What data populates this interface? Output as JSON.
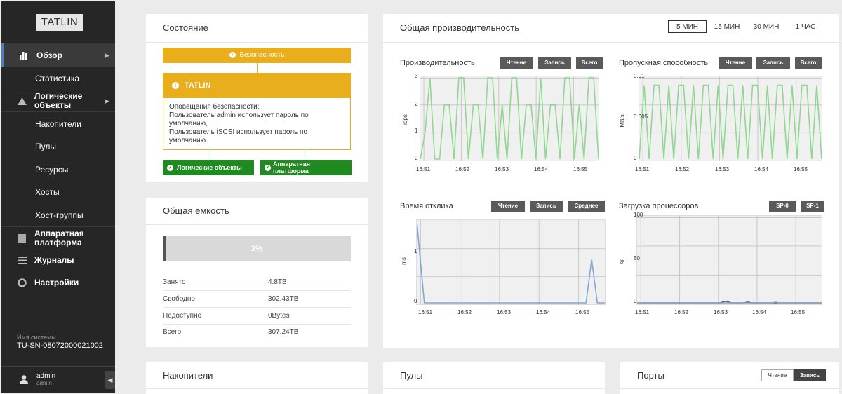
{
  "logo": "TATLIN",
  "sidebar": {
    "overview": "Обзор",
    "statistics": "Статистика",
    "logical": "Логические объекты",
    "logical_items": [
      "Накопители",
      "Пулы",
      "Ресурсы",
      "Хосты",
      "Хост-группы"
    ],
    "hardware": "Аппаратная платформа",
    "journals": "Журналы",
    "settings": "Настройки",
    "system_label": "Имя системы",
    "system_name": "TU-SN-08072000021002",
    "user_name": "admin",
    "user_role": "admin"
  },
  "state": {
    "title": "Состояние",
    "security": "Безопасность",
    "node": "TATLIN",
    "alert_lines": [
      "Оповещения безопасности:",
      "Пользователь admin использует пароль по",
      "умолчанию,",
      "Пользователь iSCSI использует пароль по",
      "умолчанию"
    ],
    "logical_ok": "Логические объекты",
    "hardware_ok_1": "Аппаратная",
    "hardware_ok_2": "платформа",
    "colors": {
      "warning": "#e9ae1b",
      "ok": "#1f8a20"
    }
  },
  "capacity": {
    "title": "Общая ёмкость",
    "percent": "2%",
    "used_fraction": 0.02,
    "rows": [
      {
        "label": "Занято",
        "value": "4.8TB"
      },
      {
        "label": "Свободно",
        "value": "302.43TB"
      },
      {
        "label": "Недоступно",
        "value": "0Bytes"
      },
      {
        "label": "Всего",
        "value": "307.24TB"
      }
    ]
  },
  "performance": {
    "title": "Общая производительность",
    "ranges": [
      "5 МИН",
      "15 МИН",
      "30 МИН",
      "1 ЧАС"
    ],
    "selected_range": "5 МИН"
  },
  "charts": {
    "iops": {
      "title": "Производительность",
      "buttons": [
        "Чтение",
        "Запись",
        "Всего"
      ],
      "ylabel": "iops",
      "yticks": [
        "3",
        "2",
        "1",
        "0"
      ],
      "xticks": [
        "16:51",
        "16:52",
        "16:53",
        "16:54",
        "16:55"
      ]
    },
    "bandwidth": {
      "title": "Пропускная способность",
      "buttons": [
        "Чтение",
        "Запись",
        "Всего"
      ],
      "ylabel": "MB/s",
      "yticks": [
        "0.01",
        "0.005",
        "0"
      ],
      "xticks": [
        "16:51",
        "16:52",
        "16:53",
        "16:54",
        "16:55"
      ]
    },
    "latency": {
      "title": "Время отклика",
      "buttons": [
        "Чтение",
        "Запись",
        "Среднее"
      ],
      "ylabel": "ms",
      "yticks": [
        "1",
        "0"
      ],
      "xticks": [
        "16:51",
        "16:52",
        "16:53",
        "16:54",
        "16:55"
      ]
    },
    "cpu": {
      "title": "Загрузка процессоров",
      "buttons": [
        "SP-0",
        "SP-1"
      ],
      "ylabel": "%",
      "yticks": [
        "100",
        "50",
        "0"
      ],
      "xticks": [
        "16:51",
        "16:52",
        "16:53",
        "16:54",
        "16:55"
      ]
    }
  },
  "chart_data": [
    {
      "type": "line",
      "title": "Производительность",
      "ylabel": "iops",
      "ylim": [
        0,
        3
      ],
      "x_range": [
        "16:50:45",
        "16:56:05"
      ],
      "series": [
        {
          "name": "Всего",
          "color": "#8fd88f",
          "values": [
            0,
            1,
            3,
            0,
            0,
            2,
            2,
            0,
            3,
            3,
            0,
            2,
            2,
            0,
            3,
            3,
            0,
            2,
            0,
            3,
            3,
            0,
            2,
            2,
            0,
            3,
            0,
            2,
            2,
            0,
            3,
            3,
            0,
            2,
            0,
            3,
            3,
            0
          ]
        }
      ]
    },
    {
      "type": "line",
      "title": "Пропускная способность",
      "ylabel": "MB/s",
      "ylim": [
        0,
        0.011
      ],
      "x_range": [
        "16:50:45",
        "16:56:05"
      ],
      "series": [
        {
          "name": "Всего",
          "color": "#8fd88f",
          "values": [
            0,
            0.01,
            0,
            0.01,
            0.01,
            0,
            0.01,
            0,
            0.01,
            0.01,
            0,
            0.01,
            0,
            0.01,
            0.01,
            0,
            0.01,
            0,
            0.01,
            0.01,
            0,
            0.01,
            0,
            0.01,
            0.01,
            0,
            0.01,
            0,
            0.01,
            0.01,
            0,
            0.01,
            0,
            0.01,
            0.01,
            0,
            0.01,
            0
          ]
        }
      ]
    },
    {
      "type": "line",
      "title": "Время отклика",
      "ylabel": "ms",
      "ylim": [
        0,
        1.5
      ],
      "x_range": [
        "16:50:45",
        "16:56:05"
      ],
      "series": [
        {
          "name": "Среднее",
          "color": "#7fa7d4",
          "points": [
            [
              0,
              1.5
            ],
            [
              0.04,
              0
            ],
            [
              0.9,
              0
            ],
            [
              0.93,
              0.8
            ],
            [
              0.96,
              0
            ],
            [
              1,
              0
            ]
          ]
        }
      ]
    },
    {
      "type": "line",
      "title": "Загрузка процессоров",
      "ylabel": "%",
      "ylim": [
        0,
        100
      ],
      "x_range": [
        "16:50:45",
        "16:56:05"
      ],
      "series": [
        {
          "name": "SP-0",
          "color": "#555555",
          "points": [
            [
              0,
              0
            ],
            [
              0.45,
              0
            ],
            [
              0.48,
              2
            ],
            [
              0.51,
              0
            ],
            [
              0.58,
              0
            ],
            [
              0.6,
              1
            ],
            [
              0.62,
              0
            ],
            [
              1,
              0
            ]
          ]
        },
        {
          "name": "SP-1",
          "color": "#7fa7d4",
          "points": [
            [
              0,
              0
            ],
            [
              0.73,
              0
            ],
            [
              0.75,
              1
            ],
            [
              0.77,
              0
            ],
            [
              1,
              0
            ]
          ]
        }
      ]
    }
  ],
  "bottom": {
    "drives": "Накопители",
    "pools": "Пулы",
    "ports": "Порты",
    "port_read": "Чтение",
    "port_write": "Запись"
  }
}
